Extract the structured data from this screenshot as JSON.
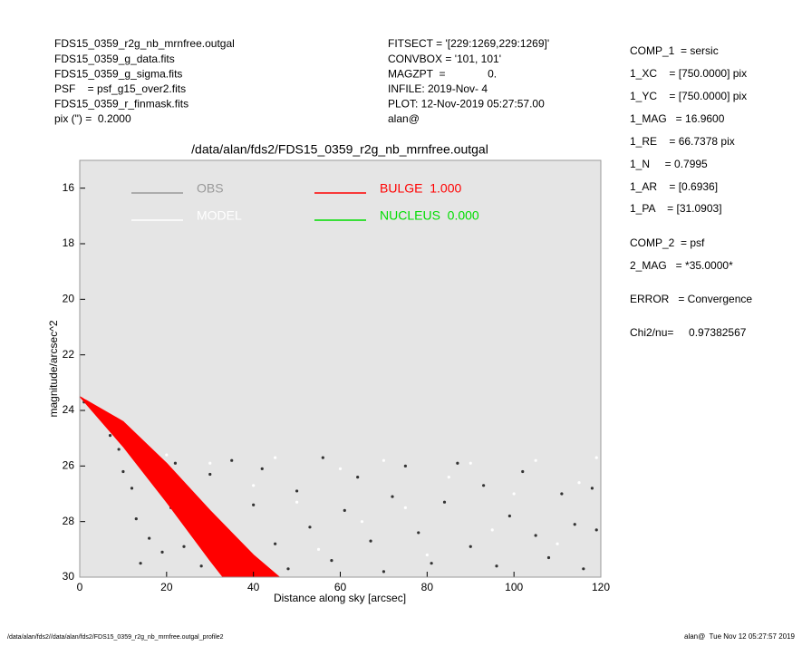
{
  "header": {
    "left": [
      "FDS15_0359_r2g_nb_mrnfree.outgal",
      "FDS15_0359_g_data.fits",
      "FDS15_0359_g_sigma.fits",
      "PSF    = psf_g15_over2.fits",
      "FDS15_0359_r_finmask.fits",
      "pix (\") =  0.2000"
    ],
    "middle": [
      "FITSECT = '[229:1269,229:1269]'",
      "CONVBOX = '101, 101'",
      "MAGZPT  =              0.",
      "INFILE: 2019-Nov- 4",
      "PLOT: 12-Nov-2019 05:27:57.00",
      "alan@"
    ],
    "right": [
      "COMP_1  = sersic",
      "1_XC    = [750.0000] pix",
      "1_YC    = [750.0000] pix",
      "1_MAG   = 16.9600",
      "1_RE    = 66.7378 pix",
      "1_N     = 0.7995",
      "1_AR    = [0.6936]",
      "1_PA    = [31.0903]",
      "COMP_2  = psf",
      "2_MAG   = *35.0000*",
      "ERROR   = Convergence",
      "Chi2/nu=     0.97382567"
    ]
  },
  "footer": {
    "left": "/data/alan/fds2//data/alan/fds2/FDS15_0359_r2g_nb_mrnfree.outgal_profile2",
    "right": "alan@  Tue Nov 12 05:27:57 2019"
  },
  "chart_data": {
    "type": "scatter",
    "title": "/data/alan/fds2/FDS15_0359_r2g_nb_mrnfree.outgal",
    "xlabel": "Distance along sky [arcsec]",
    "ylabel": "magnitude/arcsec^2",
    "xlim": [
      0,
      120
    ],
    "ylim": [
      30,
      15
    ],
    "xticks": [
      0,
      20,
      40,
      60,
      80,
      100,
      120
    ],
    "yticks": [
      16,
      18,
      20,
      22,
      24,
      26,
      28,
      30
    ],
    "background": "#e5e5e5",
    "series": [
      {
        "name": "OBS",
        "color": "#333333",
        "legend_color": "#999999",
        "x": [
          1,
          3,
          5,
          7,
          9,
          10,
          12,
          13,
          14,
          16,
          17,
          19,
          21,
          22,
          24,
          26,
          28,
          30,
          32,
          35,
          37,
          40,
          42,
          45,
          48,
          50,
          53,
          56,
          58,
          61,
          64,
          67,
          70,
          72,
          75,
          78,
          81,
          84,
          87,
          90,
          93,
          96,
          99,
          102,
          105,
          108,
          111,
          114,
          116,
          118,
          119
        ],
        "values": [
          23.7,
          23.9,
          24.3,
          24.9,
          25.4,
          26.2,
          26.8,
          27.9,
          29.5,
          28.6,
          26.4,
          29.1,
          27.5,
          25.9,
          28.9,
          27.0,
          29.6,
          26.3,
          28.1,
          25.8,
          29.3,
          27.4,
          26.1,
          28.8,
          29.7,
          26.9,
          28.2,
          25.7,
          29.4,
          27.6,
          26.4,
          28.7,
          29.8,
          27.1,
          26.0,
          28.4,
          29.5,
          27.3,
          25.9,
          28.9,
          26.7,
          29.6,
          27.8,
          26.2,
          28.5,
          29.3,
          27.0,
          28.1,
          29.7,
          26.8,
          28.3
        ]
      },
      {
        "name": "MODEL",
        "color": "#ffffff",
        "x": [
          1,
          4,
          8,
          12,
          15,
          18,
          20,
          25,
          30,
          35,
          40,
          45,
          50,
          55,
          60,
          65,
          70,
          75,
          80,
          85,
          90,
          95,
          100,
          105,
          110,
          115,
          119
        ],
        "values": [
          23.6,
          24.0,
          24.9,
          25.6,
          25.8,
          26.5,
          25.6,
          27.8,
          25.9,
          28.5,
          26.7,
          25.7,
          27.3,
          29.0,
          26.1,
          28.0,
          25.8,
          27.5,
          29.2,
          26.4,
          25.9,
          28.3,
          27.0,
          25.8,
          28.8,
          26.6,
          25.7
        ]
      },
      {
        "name": "BULGE  1.000",
        "color": "#ff0000",
        "band": true,
        "x": [
          0,
          10,
          20,
          30,
          40,
          46
        ],
        "values": [
          23.5,
          24.4,
          25.9,
          27.6,
          29.2,
          30
        ],
        "faint_x": [
          0,
          10,
          20,
          30,
          33
        ],
        "faint_values": [
          23.5,
          25.3,
          27.3,
          29.4,
          30
        ]
      },
      {
        "name": "NUCLEUS  0.000",
        "color": "#00dd00",
        "x": [],
        "values": []
      }
    ]
  }
}
